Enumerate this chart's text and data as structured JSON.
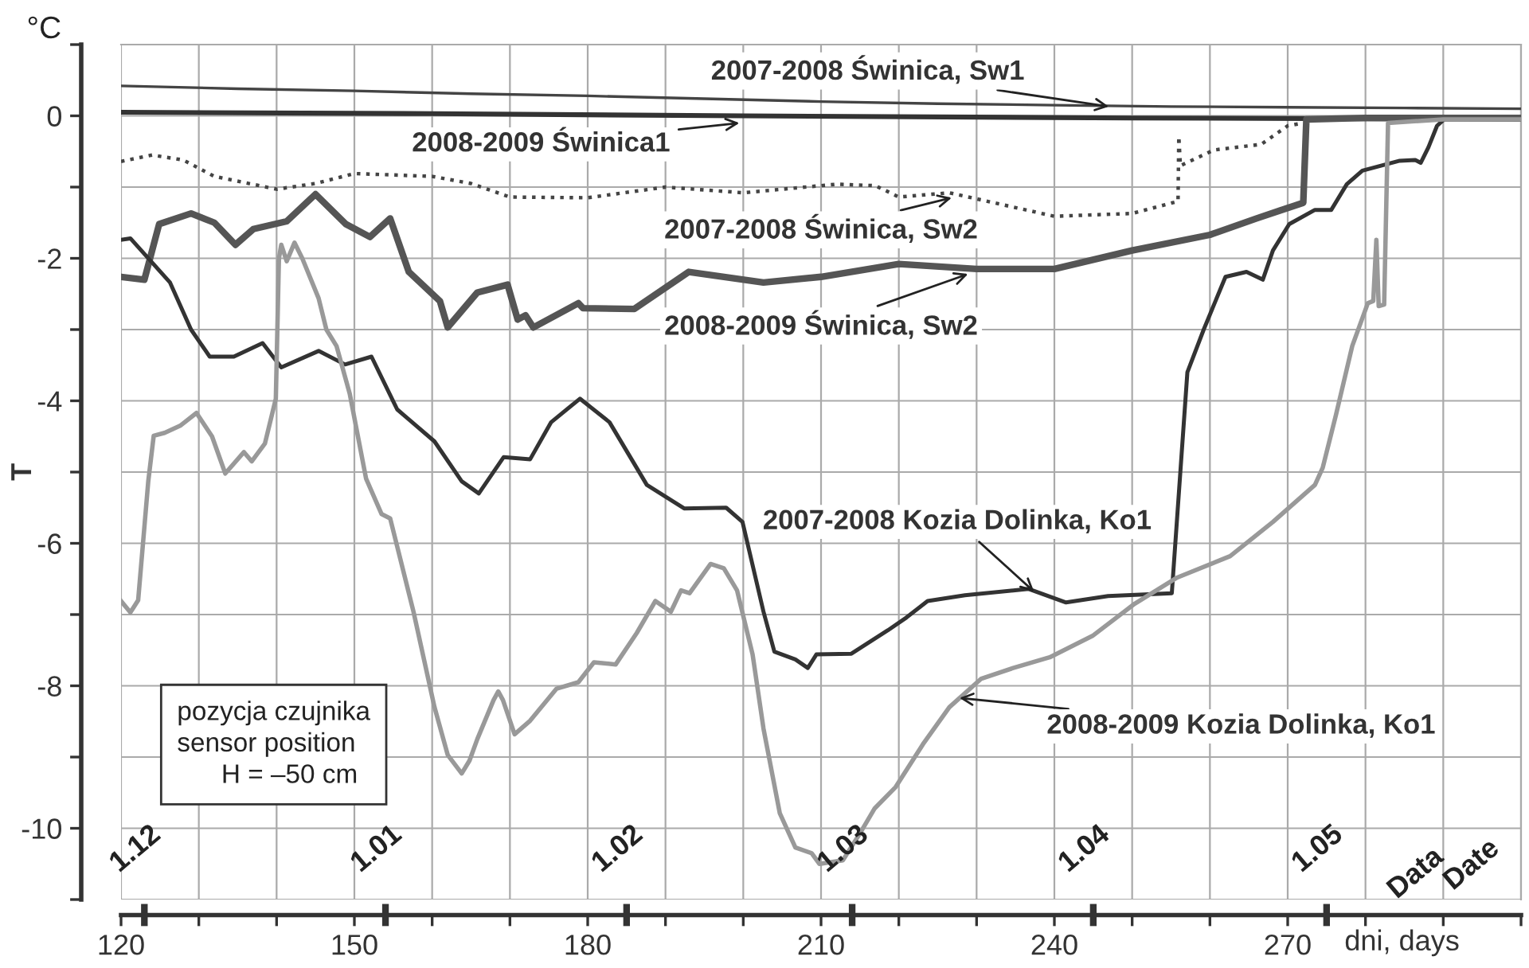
{
  "chart_data": {
    "type": "line",
    "xlabel": "dni, days",
    "ylabel": "T",
    "xlim": [
      120,
      300
    ],
    "ylim": [
      -11,
      1
    ],
    "xticks": [
      120,
      {
        "value": 130,
        "label": null
      },
      {
        "value": 140,
        "label": null
      },
      150,
      {
        "value": 160,
        "label": null
      },
      {
        "value": 170,
        "label": null
      },
      180,
      {
        "value": 190,
        "label": null
      },
      {
        "value": 200,
        "label": null
      },
      210,
      {
        "value": 220,
        "label": null
      },
      {
        "value": 230,
        "label": null
      },
      240,
      {
        "value": 250,
        "label": null
      },
      {
        "value": 260,
        "label": null
      },
      270,
      {
        "value": 280,
        "label": null
      },
      {
        "value": 290,
        "label": null
      },
      {
        "value": 300,
        "label": null
      }
    ],
    "yticks": [
      {
        "value": 1,
        "label": null
      },
      0,
      {
        "value": -1,
        "label": null
      },
      -2,
      {
        "value": -3,
        "label": null
      },
      -4,
      {
        "value": -5,
        "label": null
      },
      -6,
      {
        "value": -7,
        "label": null
      },
      -8,
      {
        "value": -9,
        "label": null
      },
      -10,
      {
        "value": -11,
        "label": null
      }
    ],
    "x2lim": [
      "2007-11-28",
      "2008-05-26"
    ],
    "x2ticks": [
      {
        "value": "2007-12-01",
        "label": "1.12"
      },
      {
        "value": "2008-01-01",
        "label": "1.01"
      },
      {
        "value": "2008-02-01",
        "label": "1.02"
      },
      {
        "value": "2008-03-01",
        "label": "1.03"
      },
      {
        "value": "2008-04-01",
        "label": "1.04"
      },
      {
        "value": "2008-05-01",
        "label": "1.05"
      }
    ],
    "grid": true,
    "legend": false,
    "marker": "none",
    "series": [
      {
        "color": "#444444",
        "line_style": "solid",
        "x": [
          120,
          135,
          150,
          165,
          180,
          195,
          210,
          225,
          240,
          255,
          270,
          285,
          300
        ],
        "values": [
          0.42,
          0.38,
          0.35,
          0.31,
          0.28,
          0.24,
          0.2,
          0.17,
          0.15,
          0.13,
          0.12,
          0.11,
          0.1
        ]
      },
      {
        "color": "#333333",
        "line_style": "solid",
        "x": [
          120,
          160,
          200,
          250,
          300
        ],
        "values": [
          0.05,
          0.03,
          0.0,
          -0.03,
          -0.05
        ]
      },
      {
        "color": "#444444",
        "line_style": "dotted",
        "x": [
          120,
          124,
          128,
          132,
          140,
          145,
          150,
          160,
          165,
          170,
          180,
          190,
          200,
          212,
          217,
          220,
          226.5,
          240,
          250,
          255.9,
          256,
          256.2,
          260.5,
          266.6,
          270,
          272
        ],
        "values": [
          -0.64,
          -0.55,
          -0.62,
          -0.85,
          -1.03,
          -0.95,
          -0.81,
          -0.85,
          -0.95,
          -1.14,
          -1.15,
          -1.0,
          -1.08,
          -0.96,
          -0.98,
          -1.14,
          -1.08,
          -1.41,
          -1.37,
          -1.2,
          -0.29,
          -0.7,
          -0.48,
          -0.4,
          -0.14,
          -0.1
        ]
      },
      {
        "color": "#555555",
        "line_style": "solid",
        "x": [
          120,
          123,
          124.9,
          129,
          132,
          134.7,
          137,
          141.3,
          145,
          148.9,
          152,
          154.6,
          157,
          161,
          162,
          165.8,
          169.7,
          171,
          172,
          173,
          178.8,
          179.4,
          186,
          193,
          202.6,
          210,
          220,
          230,
          240,
          250,
          260,
          266,
          269,
          272,
          272.4,
          280,
          300
        ],
        "values": [
          -2.26,
          -2.3,
          -1.52,
          -1.37,
          -1.5,
          -1.81,
          -1.59,
          -1.48,
          -1.1,
          -1.52,
          -1.7,
          -1.44,
          -2.19,
          -2.6,
          -2.97,
          -2.48,
          -2.37,
          -2.86,
          -2.8,
          -2.97,
          -2.63,
          -2.7,
          -2.71,
          -2.19,
          -2.34,
          -2.26,
          -2.08,
          -2.15,
          -2.15,
          -1.89,
          -1.67,
          -1.44,
          -1.33,
          -1.22,
          -0.05,
          -0.03,
          -0.03
        ]
      },
      {
        "color": "#333333",
        "line_style": "solid",
        "x": [
          120,
          121.2,
          126.3,
          129,
          131.4,
          134.5,
          138.2,
          140.6,
          145.4,
          148.8,
          152.2,
          155.5,
          160.3,
          163.8,
          166,
          169.2,
          172.6,
          175.3,
          179,
          182.8,
          187.6,
          192.4,
          197.8,
          199.9,
          202.6,
          204,
          206.7,
          208.3,
          209.4,
          213.9,
          218.6,
          221,
          223.7,
          228.5,
          236.7,
          241.5,
          246.9,
          255.1,
          257.1,
          259.2,
          262,
          264.7,
          266.8,
          268.1,
          270.2,
          273.5,
          275.6,
          277.6,
          279.6,
          284.4,
          286.4,
          287.1,
          288.1,
          289.2,
          289.9
        ],
        "values": [
          -1.74,
          -1.72,
          -2.34,
          -3.0,
          -3.38,
          -3.38,
          -3.19,
          -3.53,
          -3.3,
          -3.49,
          -3.38,
          -4.12,
          -4.57,
          -5.13,
          -5.3,
          -4.79,
          -4.82,
          -4.3,
          -3.97,
          -4.3,
          -5.18,
          -5.51,
          -5.5,
          -5.7,
          -6.96,
          -7.52,
          -7.63,
          -7.75,
          -7.56,
          -7.55,
          -7.22,
          -7.04,
          -6.81,
          -6.73,
          -6.64,
          -6.83,
          -6.74,
          -6.7,
          -3.6,
          -3.0,
          -2.26,
          -2.19,
          -2.3,
          -1.89,
          -1.52,
          -1.32,
          -1.32,
          -0.96,
          -0.77,
          -0.63,
          -0.62,
          -0.66,
          -0.44,
          -0.14,
          -0.07
        ]
      },
      {
        "color": "#999999",
        "line_style": "solid",
        "x": [
          120,
          121.2,
          122.2,
          123.5,
          124.2,
          125.6,
          127.6,
          129.7,
          131.7,
          133.4,
          135.8,
          136.8,
          138.5,
          139.9,
          140.3,
          140.6,
          141.3,
          142.3,
          143.3,
          145.4,
          146.4,
          147.7,
          149.4,
          151.5,
          153.5,
          154.6,
          157.6,
          160.3,
          162,
          163.8,
          164.8,
          165.8,
          167.9,
          168.5,
          169.1,
          170.6,
          172.6,
          176,
          178.8,
          180.8,
          183.6,
          186.3,
          188.7,
          190.7,
          192,
          193.1,
          195.8,
          197.5,
          199.2,
          201.2,
          202.6,
          204.7,
          206.7,
          208.8,
          209.8,
          212.8,
          214.9,
          216.9,
          219.6,
          223.1,
          226.5,
          230.6,
          234.7,
          239.4,
          244.9,
          250.3,
          255.8,
          262.6,
          268.1,
          273.5,
          274.5,
          276.2,
          278.3,
          280.3,
          281,
          281.4,
          281.7,
          282.4,
          282.9,
          290,
          300
        ],
        "values": [
          -6.81,
          -6.97,
          -6.8,
          -5.13,
          -4.49,
          -4.45,
          -4.35,
          -4.17,
          -4.5,
          -5.02,
          -4.72,
          -4.85,
          -4.6,
          -3.97,
          -2.0,
          -1.81,
          -2.04,
          -1.78,
          -2.0,
          -2.56,
          -3.0,
          -3.23,
          -3.9,
          -5.09,
          -5.59,
          -5.65,
          -6.96,
          -8.3,
          -8.97,
          -9.23,
          -9.05,
          -8.75,
          -8.2,
          -8.08,
          -8.2,
          -8.68,
          -8.49,
          -8.04,
          -7.95,
          -7.67,
          -7.7,
          -7.26,
          -6.81,
          -6.96,
          -6.66,
          -6.7,
          -6.29,
          -6.35,
          -6.66,
          -7.56,
          -8.6,
          -9.79,
          -10.27,
          -10.35,
          -10.5,
          -10.45,
          -10.09,
          -9.72,
          -9.42,
          -8.82,
          -8.3,
          -7.9,
          -7.75,
          -7.6,
          -7.3,
          -6.85,
          -6.48,
          -6.18,
          -5.7,
          -5.18,
          -4.94,
          -4.2,
          -3.23,
          -2.63,
          -2.6,
          -1.74,
          -2.67,
          -2.65,
          -0.1,
          -0.05,
          -0.05
        ]
      }
    ],
    "annotations": [
      {
        "text": "2007-2008 Świnica, Sw1",
        "x": 247,
        "y": 0.13
      },
      {
        "text": "2008-2009 Świnica1",
        "x": 199.5,
        "y": -0.1
      },
      {
        "text": "2007-2008 Świnica, Sw2",
        "x": 226.8,
        "y": -1.15
      },
      {
        "text": "2008-2009 Świnica, Sw2",
        "x": 228.9,
        "y": -2.22
      },
      {
        "text": "2007-2008 Kozia Dolinka, Ko1",
        "x": 237.4,
        "y": -6.68
      },
      {
        "text": "2008-2009 Kozia Dolinka, Ko1",
        "x": 227.8,
        "y": -8.17
      },
      "°C",
      "pozycja czujnika\nsensor position\n      H = –50 cm",
      "Data",
      "Date"
    ]
  }
}
